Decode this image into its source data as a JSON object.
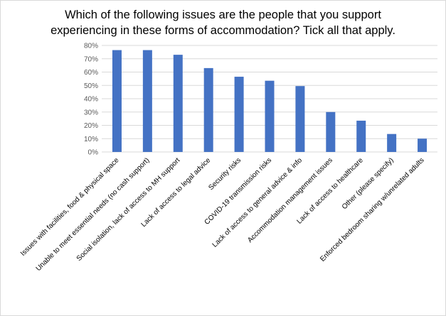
{
  "chart_data": {
    "type": "bar",
    "title_lines": [
      "Which of the following issues are the people that you support",
      "experiencing  in these forms of accommodation? Tick all that apply."
    ],
    "categories": [
      "Issues with facilities, food & physical space",
      "Unable to meet essential needs (no cash support)",
      "Social isolation, lack of access to MH support",
      "Lack of access to legal advice",
      "Security risks",
      "COVID-19 transmission risks",
      "Lack of access to general advice & info",
      "Accommodation management issues",
      "Lack of access to healthcare",
      "Other (please specify)",
      "Enforced bedroom sharing w/unrelated adults"
    ],
    "values": [
      76.5,
      76.5,
      73,
      63,
      56.5,
      53.5,
      49.5,
      30,
      23.5,
      13.5,
      10
    ],
    "y_ticks": [
      "0%",
      "10%",
      "20%",
      "30%",
      "40%",
      "50%",
      "60%",
      "70%",
      "80%"
    ],
    "ylim": [
      0,
      80
    ],
    "grid": true,
    "bar_color": "#4472c4",
    "grid_color": "#d9d9d9"
  }
}
